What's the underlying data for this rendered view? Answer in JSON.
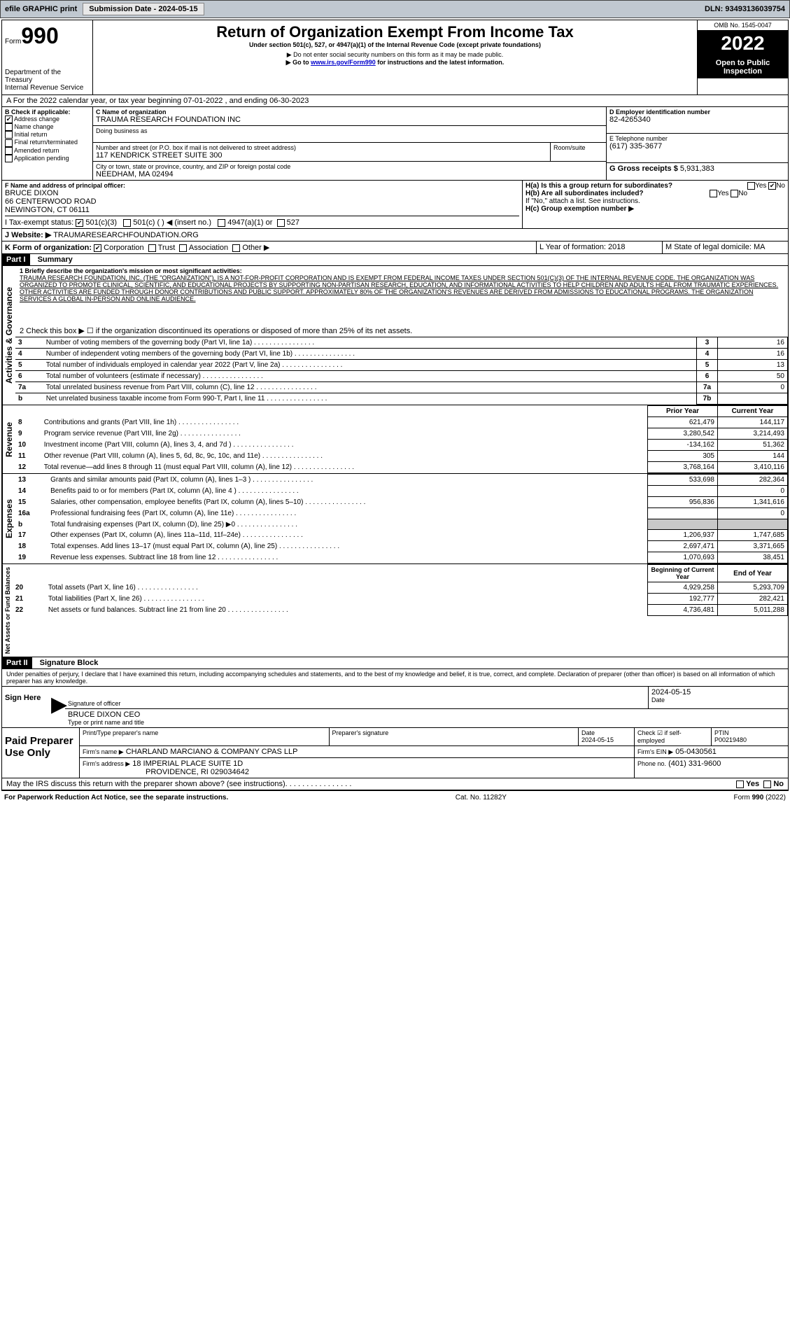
{
  "topbar": {
    "efile": "efile GRAPHIC print",
    "submission_btn": "Submission Date - 2024-05-15",
    "dln": "DLN: 93493136039754"
  },
  "header": {
    "form_label": "Form",
    "form_number": "990",
    "dept": "Department of the Treasury",
    "irs": "Internal Revenue Service",
    "title": "Return of Organization Exempt From Income Tax",
    "subtitle": "Under section 501(c), 527, or 4947(a)(1) of the Internal Revenue Code (except private foundations)",
    "note1": "▶ Do not enter social security numbers on this form as it may be made public.",
    "note2_pre": "▶ Go to ",
    "note2_link": "www.irs.gov/Form990",
    "note2_post": " for instructions and the latest information.",
    "omb": "OMB No. 1545-0047",
    "year": "2022",
    "open_public": "Open to Public Inspection"
  },
  "period": {
    "text": "A For the 2022 calendar year, or tax year beginning 07-01-2022  , and ending 06-30-2023"
  },
  "sectionB": {
    "label": "B Check if applicable:",
    "items": [
      "Address change",
      "Name change",
      "Initial return",
      "Final return/terminated",
      "Amended return",
      "Application pending"
    ],
    "checked_idx": 0
  },
  "sectionC": {
    "label": "C Name of organization",
    "org_name": "TRAUMA RESEARCH FOUNDATION INC",
    "dba_label": "Doing business as",
    "street_label": "Number and street (or P.O. box if mail is not delivered to street address)",
    "street": "117 KENDRICK STREET SUITE 300",
    "room_label": "Room/suite",
    "city_label": "City or town, state or province, country, and ZIP or foreign postal code",
    "city": "NEEDHAM, MA  02494"
  },
  "sectionD": {
    "label": "D Employer identification number",
    "value": "82-4265340"
  },
  "sectionE": {
    "label": "E Telephone number",
    "value": "(617) 335-3677"
  },
  "sectionG": {
    "label": "G Gross receipts $",
    "value": "5,931,383"
  },
  "sectionF": {
    "label": "F  Name and address of principal officer:",
    "name": "BRUCE DIXON",
    "street": "66 CENTERWOOD ROAD",
    "city": "NEWINGTON, CT  06111"
  },
  "sectionH": {
    "a_label": "H(a)  Is this a group return for subordinates?",
    "b_label": "H(b)  Are all subordinates included?",
    "b_note": "If \"No,\" attach a list. See instructions.",
    "c_label": "H(c)  Group exemption number ▶",
    "yes": "Yes",
    "no": "No"
  },
  "sectionI": {
    "label": "I   Tax-exempt status:",
    "opts": [
      "501(c)(3)",
      "501(c)  (  ) ◀ (insert no.)",
      "4947(a)(1) or",
      "527"
    ]
  },
  "sectionJ": {
    "label": "J   Website: ▶",
    "value": "TRAUMARESEARCHFOUNDATION.ORG"
  },
  "sectionK": {
    "label": "K Form of organization:",
    "opts": [
      "Corporation",
      "Trust",
      "Association",
      "Other ▶"
    ]
  },
  "sectionL": {
    "label": "L  Year of formation: 2018"
  },
  "sectionM": {
    "label": "M State of legal domicile: MA"
  },
  "part1": {
    "header": "Part I",
    "title": "Summary",
    "line1_label": "1   Briefly describe the organization's mission or most significant activities:",
    "mission": "TRAUMA RESEARCH FOUNDATION, INC. (THE \"ORGANIZATION\"), IS A NOT-FOR-PROFIT CORPORATION AND IS EXEMPT FROM FEDERAL INCOME TAXES UNDER SECTION 501(C)(3) OF THE INTERNAL REVENUE CODE. THE ORGANIZATION WAS ORGANIZED TO PROMOTE CLINICAL, SCIENTIFIC, AND EDUCATIONAL PROJECTS BY SUPPORTING NON-PARTISAN RESEARCH, EDUCATION, AND INFORMATIONAL ACTIVITIES TO HELP CHILDREN AND ADULTS HEAL FROM TRAUMATIC EXPERIENCES. OTHER ACTIVITIES ARE FUNDED THROUGH DONOR CONTRIBUTIONS AND PUBLIC SUPPORT. APPROXIMATELY 80% OF THE ORGANIZATION'S REVENUES ARE DERIVED FROM ADMISSIONS TO EDUCATIONAL PROGRAMS. THE ORGANIZATION SERVICES A GLOBAL IN-PERSON AND ONLINE AUDIENCE.",
    "line2": "2   Check this box ▶ ☐ if the organization discontinued its operations or disposed of more than 25% of its net assets.",
    "governance_label": "Activities & Governance",
    "revenue_label": "Revenue",
    "expenses_label": "Expenses",
    "netassets_label": "Net Assets or Fund Balances",
    "gov_rows": [
      {
        "n": "3",
        "t": "Number of voting members of the governing body (Part VI, line 1a)",
        "k": "3",
        "v": "16"
      },
      {
        "n": "4",
        "t": "Number of independent voting members of the governing body (Part VI, line 1b)",
        "k": "4",
        "v": "16"
      },
      {
        "n": "5",
        "t": "Total number of individuals employed in calendar year 2022 (Part V, line 2a)",
        "k": "5",
        "v": "13"
      },
      {
        "n": "6",
        "t": "Total number of volunteers (estimate if necessary)",
        "k": "6",
        "v": "50"
      },
      {
        "n": "7a",
        "t": "Total unrelated business revenue from Part VIII, column (C), line 12",
        "k": "7a",
        "v": "0"
      },
      {
        "n": "b",
        "t": "Net unrelated business taxable income from Form 990-T, Part I, line 11",
        "k": "7b",
        "v": ""
      }
    ],
    "prior_year": "Prior Year",
    "current_year": "Current Year",
    "rev_rows": [
      {
        "n": "8",
        "t": "Contributions and grants (Part VIII, line 1h)",
        "py": "621,479",
        "cy": "144,117"
      },
      {
        "n": "9",
        "t": "Program service revenue (Part VIII, line 2g)",
        "py": "3,280,542",
        "cy": "3,214,493"
      },
      {
        "n": "10",
        "t": "Investment income (Part VIII, column (A), lines 3, 4, and 7d )",
        "py": "-134,162",
        "cy": "51,362"
      },
      {
        "n": "11",
        "t": "Other revenue (Part VIII, column (A), lines 5, 6d, 8c, 9c, 10c, and 11e)",
        "py": "305",
        "cy": "144"
      },
      {
        "n": "12",
        "t": "Total revenue—add lines 8 through 11 (must equal Part VIII, column (A), line 12)",
        "py": "3,768,164",
        "cy": "3,410,116"
      }
    ],
    "exp_rows": [
      {
        "n": "13",
        "t": "Grants and similar amounts paid (Part IX, column (A), lines 1–3 )",
        "py": "533,698",
        "cy": "282,364"
      },
      {
        "n": "14",
        "t": "Benefits paid to or for members (Part IX, column (A), line 4 )",
        "py": "",
        "cy": "0"
      },
      {
        "n": "15",
        "t": "Salaries, other compensation, employee benefits (Part IX, column (A), lines 5–10)",
        "py": "956,836",
        "cy": "1,341,616"
      },
      {
        "n": "16a",
        "t": "Professional fundraising fees (Part IX, column (A), line 11e)",
        "py": "",
        "cy": "0"
      },
      {
        "n": "b",
        "t": "Total fundraising expenses (Part IX, column (D), line 25) ▶0",
        "py": "GRAY",
        "cy": "GRAY"
      },
      {
        "n": "17",
        "t": "Other expenses (Part IX, column (A), lines 11a–11d, 11f–24e)",
        "py": "1,206,937",
        "cy": "1,747,685"
      },
      {
        "n": "18",
        "t": "Total expenses. Add lines 13–17 (must equal Part IX, column (A), line 25)",
        "py": "2,697,471",
        "cy": "3,371,665"
      },
      {
        "n": "19",
        "t": "Revenue less expenses. Subtract line 18 from line 12",
        "py": "1,070,693",
        "cy": "38,451"
      }
    ],
    "begin_year": "Beginning of Current Year",
    "end_year": "End of Year",
    "net_rows": [
      {
        "n": "20",
        "t": "Total assets (Part X, line 16)",
        "py": "4,929,258",
        "cy": "5,293,709"
      },
      {
        "n": "21",
        "t": "Total liabilities (Part X, line 26)",
        "py": "192,777",
        "cy": "282,421"
      },
      {
        "n": "22",
        "t": "Net assets or fund balances. Subtract line 21 from line 20",
        "py": "4,736,481",
        "cy": "5,011,288"
      }
    ]
  },
  "part2": {
    "header": "Part II",
    "title": "Signature Block",
    "penalty": "Under penalties of perjury, I declare that I have examined this return, including accompanying schedules and statements, and to the best of my knowledge and belief, it is true, correct, and complete. Declaration of preparer (other than officer) is based on all information of which preparer has any knowledge.",
    "sign_here": "Sign Here",
    "sig_officer": "Signature of officer",
    "date_label": "Date",
    "sig_date": "2024-05-15",
    "officer_name": "BRUCE DIXON CEO",
    "type_name": "Type or print name and title",
    "paid_prep": "Paid Preparer Use Only",
    "prep_name_label": "Print/Type preparer's name",
    "prep_sig_label": "Preparer's signature",
    "prep_date": "2024-05-15",
    "check_self": "Check ☑ if self-employed",
    "ptin_label": "PTIN",
    "ptin": "P00219480",
    "firm_name_label": "Firm's name    ▶",
    "firm_name": "CHARLAND MARCIANO & COMPANY CPAS LLP",
    "firm_ein_label": "Firm's EIN ▶",
    "firm_ein": "05-0430561",
    "firm_addr_label": "Firm's address ▶",
    "firm_addr": "18 IMPERIAL PLACE SUITE 1D",
    "firm_city": "PROVIDENCE, RI  029034642",
    "phone_label": "Phone no.",
    "phone": "(401) 331-9600",
    "discuss": "May the IRS discuss this return with the preparer shown above? (see instructions)"
  },
  "footer": {
    "paperwork": "For Paperwork Reduction Act Notice, see the separate instructions.",
    "cat": "Cat. No. 11282Y",
    "form": "Form 990 (2022)"
  }
}
